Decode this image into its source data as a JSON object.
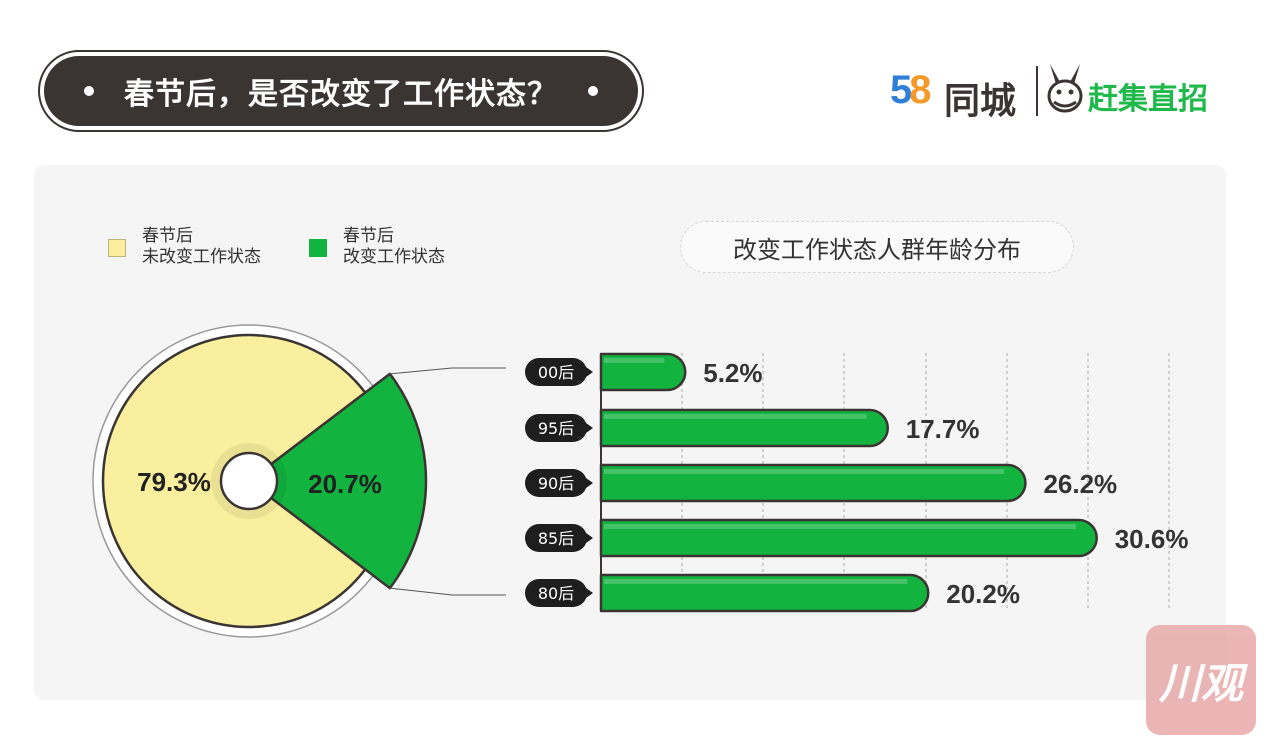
{
  "header": {
    "title": "春节后，是否改变了工作状态？"
  },
  "logos": {
    "brand1_digits": [
      "5",
      "8"
    ],
    "brand1_text": "同城",
    "brand2_text": "赶集直招"
  },
  "legend": [
    {
      "line1": "春节后",
      "line2": "未改变工作状态",
      "color": "#f9ef9e"
    },
    {
      "line1": "春节后",
      "line2": "改变工作状态",
      "color": "#12b33e"
    }
  ],
  "bar_chart_title": "改变工作状态人群年龄分布",
  "watermark": "川观",
  "colors": {
    "yellow": "#f9ef9e",
    "green": "#12b33e",
    "dark": "#3a3533"
  },
  "chart_data": [
    {
      "type": "pie",
      "labels": [
        "春节后 未改变工作状态",
        "春节后 改变工作状态"
      ],
      "values": [
        79.3,
        20.7
      ],
      "value_labels": [
        "79.3%",
        "20.7%"
      ]
    },
    {
      "type": "bar",
      "orientation": "horizontal",
      "title": "改变工作状态人群年龄分布",
      "categories": [
        "00后",
        "95后",
        "90后",
        "85后",
        "80后"
      ],
      "values": [
        5.2,
        17.7,
        26.2,
        30.6,
        20.2
      ],
      "value_labels": [
        "5.2%",
        "17.7%",
        "26.2%",
        "30.6%",
        "20.2%"
      ],
      "grid": true
    }
  ]
}
